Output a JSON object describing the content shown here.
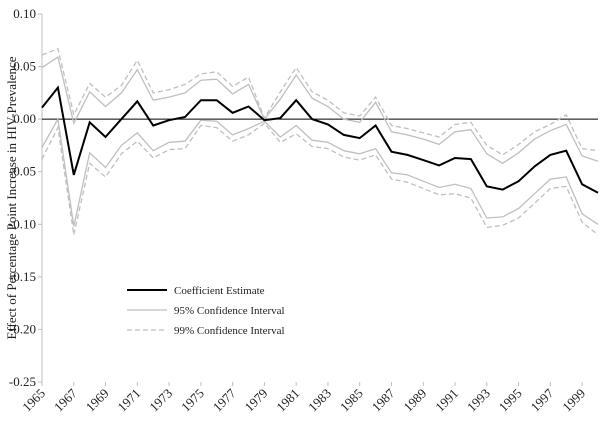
{
  "chart_data": {
    "type": "line",
    "y_label": "Effect of Percentage Point Increase in HIV-Prevalence",
    "x": [
      1965,
      1966,
      1967,
      1968,
      1969,
      1970,
      1971,
      1972,
      1973,
      1974,
      1975,
      1976,
      1977,
      1978,
      1979,
      1980,
      1981,
      1982,
      1983,
      1984,
      1985,
      1986,
      1987,
      1988,
      1989,
      1990,
      1991,
      1992,
      1993,
      1994,
      1995,
      1996,
      1997,
      1998,
      1999,
      2000
    ],
    "xlim": [
      1965,
      2000
    ],
    "xticks": [
      1965,
      1967,
      1969,
      1971,
      1973,
      1975,
      1977,
      1979,
      1981,
      1983,
      1985,
      1987,
      1989,
      1991,
      1993,
      1995,
      1997,
      1999
    ],
    "ylim": [
      -0.25,
      0.1
    ],
    "yticks": [
      {
        "value": 0.1,
        "label": "0.10"
      },
      {
        "value": 0.05,
        "label": "0.05"
      },
      {
        "value": 0,
        "label": "0.00"
      },
      {
        "value": -0.05,
        "label": "-0.05"
      },
      {
        "value": -0.1,
        "label": "-0.10"
      },
      {
        "value": -0.15,
        "label": "-0.15"
      },
      {
        "value": -0.2,
        "label": "-0.20"
      },
      {
        "value": -0.25,
        "label": "-0.25"
      }
    ],
    "series": [
      {
        "name": "Coefficient Estimate",
        "color": "#000000",
        "dashed": false,
        "values": [
          0.011,
          0.03,
          -0.053,
          -0.003,
          -0.017,
          0.0,
          0.017,
          -0.006,
          -0.001,
          0.002,
          0.018,
          0.018,
          0.006,
          0.012,
          -0.001,
          0.001,
          0.018,
          0.0,
          -0.005,
          -0.015,
          -0.018,
          -0.006,
          -0.031,
          -0.034,
          -0.039,
          -0.044,
          -0.037,
          -0.038,
          -0.064,
          -0.067,
          -0.059,
          -0.045,
          -0.034,
          -0.03,
          -0.062,
          -0.07
        ]
      },
      {
        "name": "95% Confidence Interval",
        "color": "#bfbfbf",
        "dashed": false,
        "upper": [
          0.049,
          0.059,
          -0.004,
          0.026,
          0.012,
          0.025,
          0.047,
          0.018,
          0.021,
          0.025,
          0.037,
          0.038,
          0.024,
          0.033,
          0.0,
          0.019,
          0.042,
          0.02,
          0.012,
          0.0,
          -0.003,
          0.016,
          -0.012,
          -0.015,
          -0.019,
          -0.024,
          -0.012,
          -0.01,
          -0.033,
          -0.042,
          -0.032,
          -0.019,
          -0.011,
          -0.005,
          -0.035,
          -0.04
        ],
        "lower": [
          -0.027,
          0.0,
          -0.102,
          -0.032,
          -0.046,
          -0.025,
          -0.013,
          -0.03,
          -0.022,
          -0.021,
          -0.001,
          -0.002,
          -0.015,
          -0.009,
          -0.002,
          -0.017,
          -0.006,
          -0.02,
          -0.022,
          -0.03,
          -0.033,
          -0.028,
          -0.051,
          -0.053,
          -0.059,
          -0.065,
          -0.062,
          -0.066,
          -0.094,
          -0.093,
          -0.085,
          -0.071,
          -0.057,
          -0.055,
          -0.09,
          -0.1
        ]
      },
      {
        "name": "99% Confidence Interval",
        "color": "#bfbfbf",
        "dashed": true,
        "upper": [
          0.061,
          0.067,
          0.004,
          0.034,
          0.021,
          0.032,
          0.056,
          0.025,
          0.028,
          0.033,
          0.043,
          0.045,
          0.031,
          0.04,
          0.001,
          0.026,
          0.049,
          0.026,
          0.018,
          0.006,
          0.003,
          0.021,
          -0.006,
          -0.009,
          -0.013,
          -0.017,
          -0.005,
          -0.003,
          -0.025,
          -0.034,
          -0.024,
          -0.012,
          -0.005,
          0.004,
          -0.028,
          -0.03
        ],
        "lower": [
          -0.038,
          -0.008,
          -0.11,
          -0.042,
          -0.055,
          -0.033,
          -0.021,
          -0.037,
          -0.029,
          -0.028,
          -0.006,
          -0.008,
          -0.021,
          -0.015,
          -0.004,
          -0.022,
          -0.014,
          -0.026,
          -0.028,
          -0.036,
          -0.039,
          -0.034,
          -0.057,
          -0.06,
          -0.066,
          -0.072,
          -0.071,
          -0.075,
          -0.103,
          -0.101,
          -0.094,
          -0.08,
          -0.066,
          -0.064,
          -0.098,
          -0.11
        ]
      }
    ]
  }
}
